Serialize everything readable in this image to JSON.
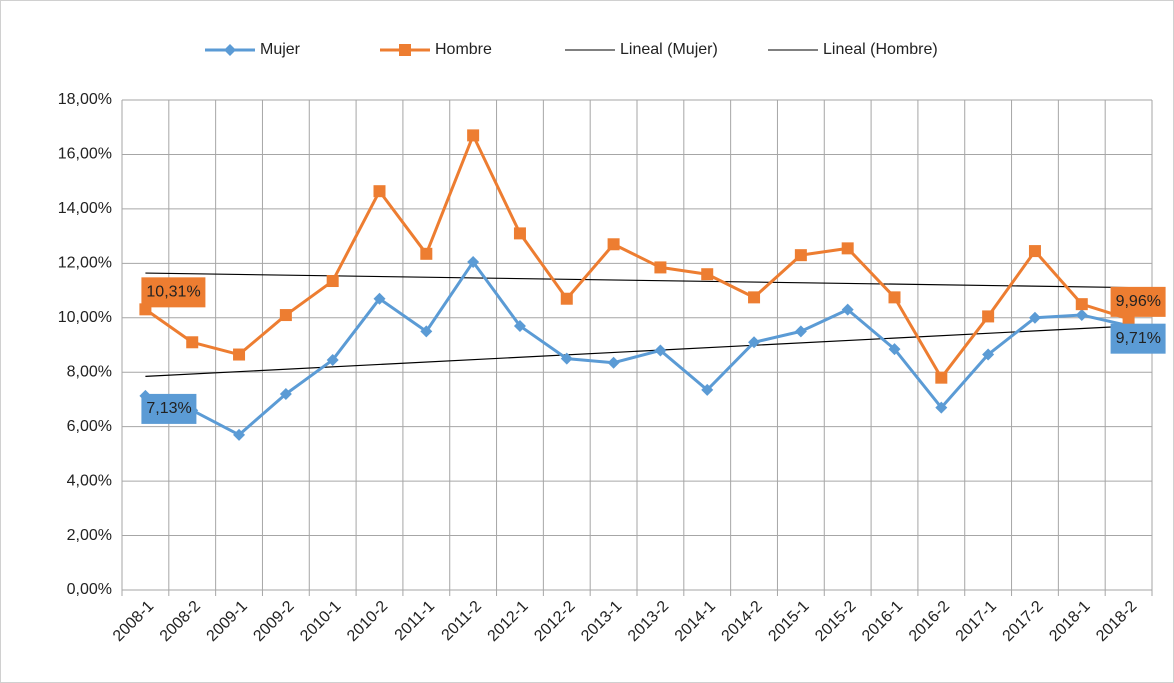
{
  "chart_data": {
    "type": "line",
    "categories": [
      "2008-1",
      "2008-2",
      "2009-1",
      "2009-2",
      "2010-1",
      "2010-2",
      "2011-1",
      "2011-2",
      "2012-1",
      "2012-2",
      "2013-1",
      "2013-2",
      "2014-1",
      "2014-2",
      "2015-1",
      "2015-2",
      "2016-1",
      "2016-2",
      "2017-1",
      "2017-2",
      "2018-1",
      "2018-2"
    ],
    "series": [
      {
        "name": "Mujer",
        "color": "#5b9bd5",
        "marker": "diamond",
        "values": [
          7.13,
          6.6,
          5.7,
          7.2,
          8.45,
          10.7,
          9.5,
          12.05,
          9.7,
          8.5,
          8.35,
          8.8,
          7.35,
          9.1,
          9.5,
          10.3,
          8.85,
          6.7,
          8.65,
          10.0,
          10.1,
          9.71
        ],
        "value_labels": [
          "7,13%",
          null,
          null,
          null,
          null,
          null,
          null,
          null,
          null,
          null,
          null,
          null,
          null,
          null,
          null,
          null,
          null,
          null,
          null,
          null,
          null,
          "9,71%"
        ]
      },
      {
        "name": "Hombre",
        "color": "#ed7d31",
        "marker": "square",
        "values": [
          10.31,
          9.1,
          8.65,
          10.1,
          11.35,
          14.65,
          12.35,
          16.7,
          13.1,
          10.7,
          12.7,
          11.85,
          11.6,
          10.75,
          12.3,
          12.55,
          10.75,
          7.8,
          10.05,
          12.45,
          10.5,
          9.96
        ],
        "value_labels": [
          "10,31%",
          null,
          null,
          null,
          null,
          null,
          null,
          null,
          null,
          null,
          null,
          null,
          null,
          null,
          null,
          null,
          null,
          null,
          null,
          null,
          null,
          "9,96%"
        ]
      }
    ],
    "trendlines": [
      {
        "name": "Lineal (Mujer)",
        "series": 0,
        "color": "#000000"
      },
      {
        "name": "Lineal (Hombre)",
        "series": 1,
        "color": "#000000"
      }
    ],
    "ylim": [
      0,
      18
    ],
    "yticks": [
      {
        "value": 0,
        "label": "0,00%"
      },
      {
        "value": 2,
        "label": "2,00%"
      },
      {
        "value": 4,
        "label": "4,00%"
      },
      {
        "value": 6,
        "label": "6,00%"
      },
      {
        "value": 8,
        "label": "8,00%"
      },
      {
        "value": 10,
        "label": "10,00%"
      },
      {
        "value": 12,
        "label": "12,00%"
      },
      {
        "value": 14,
        "label": "14,00%"
      },
      {
        "value": 16,
        "label": "16,00%"
      },
      {
        "value": 18,
        "label": "18,00%"
      }
    ],
    "grid": true,
    "legend": "top"
  }
}
